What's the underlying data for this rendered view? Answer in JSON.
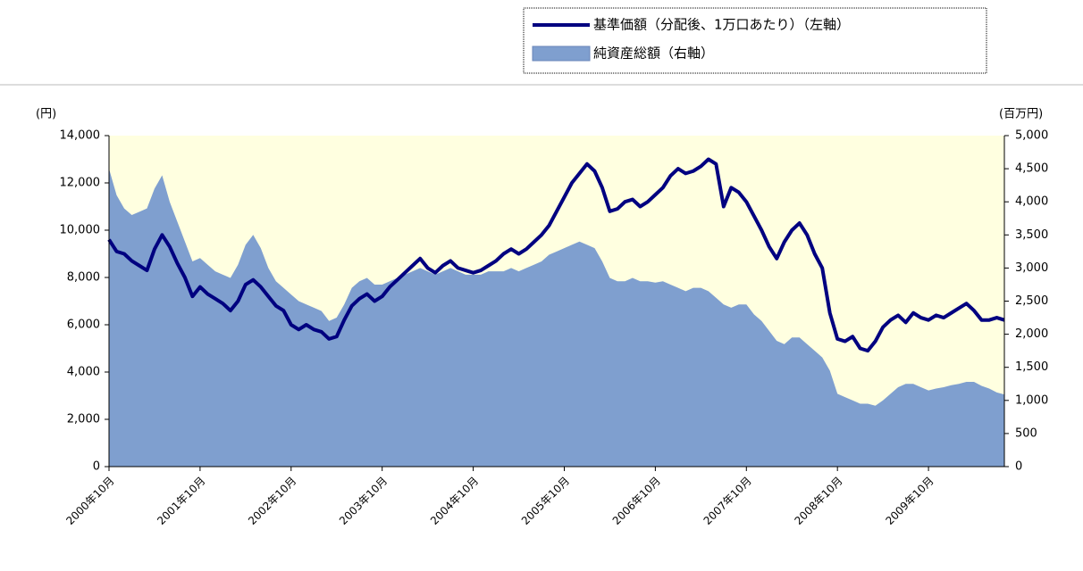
{
  "chart_data": {
    "type": "combo",
    "y_label": "(円)",
    "y2_label": "(百万円)",
    "categories": [
      "2000年10月",
      null,
      null,
      null,
      null,
      null,
      null,
      null,
      null,
      null,
      null,
      null,
      "2001年10月",
      null,
      null,
      null,
      null,
      null,
      null,
      null,
      null,
      null,
      null,
      null,
      "2002年10月",
      null,
      null,
      null,
      null,
      null,
      null,
      null,
      null,
      null,
      null,
      null,
      "2003年10月",
      null,
      null,
      null,
      null,
      null,
      null,
      null,
      null,
      null,
      null,
      null,
      "2004年10月",
      null,
      null,
      null,
      null,
      null,
      null,
      null,
      null,
      null,
      null,
      null,
      "2005年10月",
      null,
      null,
      null,
      null,
      null,
      null,
      null,
      null,
      null,
      null,
      null,
      "2006年10月",
      null,
      null,
      null,
      null,
      null,
      null,
      null,
      null,
      null,
      null,
      null,
      "2007年10月",
      null,
      null,
      null,
      null,
      null,
      null,
      null,
      null,
      null,
      null,
      null,
      "2008年10月",
      null,
      null,
      null,
      null,
      null,
      null,
      null,
      null,
      null,
      null,
      null,
      "2009年10月",
      null,
      null,
      null,
      null,
      null,
      null,
      null,
      null,
      null,
      null
    ],
    "series": [
      {
        "name": "基準価額（分配後、1万口あたり）（左軸）",
        "type": "line",
        "color": "#000080",
        "values": [
          9600,
          9100,
          9000,
          8700,
          8500,
          8300,
          9200,
          9800,
          9300,
          8600,
          8000,
          7200,
          7600,
          7300,
          7100,
          6900,
          6600,
          7000,
          7700,
          7900,
          7600,
          7200,
          6800,
          6600,
          6000,
          5800,
          6000,
          5800,
          5700,
          5400,
          5500,
          6200,
          6800,
          7100,
          7300,
          7000,
          7200,
          7600,
          7900,
          8200,
          8500,
          8800,
          8400,
          8200,
          8500,
          8700,
          8400,
          8300,
          8200,
          8300,
          8500,
          8700,
          9000,
          9200,
          9000,
          9200,
          9500,
          9800,
          10200,
          10800,
          11400,
          12000,
          12400,
          12800,
          12500,
          11800,
          10800,
          10900,
          11200,
          11300,
          11000,
          11200,
          11500,
          11800,
          12300,
          12600,
          12400,
          12500,
          12700,
          13000,
          12800,
          11000,
          11800,
          11600,
          11200,
          10600,
          10000,
          9300,
          8800,
          9500,
          10000,
          10300,
          9800,
          9000,
          8400,
          6500,
          5400,
          5300,
          5500,
          5000,
          4900,
          5300,
          5900,
          6200,
          6400,
          6100,
          6500,
          6300,
          6200,
          6400,
          6300,
          6500,
          6700,
          6900,
          6600,
          6200,
          6200,
          6300,
          6200
        ]
      },
      {
        "name": "純資産総額（右軸）",
        "type": "area",
        "axis": "y2",
        "color": "#7f9fcf",
        "values": [
          4500,
          4100,
          3900,
          3800,
          3850,
          3900,
          4200,
          4400,
          4000,
          3700,
          3400,
          3100,
          3150,
          3050,
          2950,
          2900,
          2850,
          3050,
          3350,
          3500,
          3300,
          3000,
          2800,
          2700,
          2600,
          2500,
          2450,
          2400,
          2350,
          2200,
          2250,
          2450,
          2700,
          2800,
          2850,
          2750,
          2750,
          2800,
          2850,
          2900,
          2950,
          3000,
          2950,
          2900,
          2950,
          3000,
          2950,
          2900,
          2900,
          2900,
          2950,
          2950,
          2950,
          3000,
          2950,
          3000,
          3050,
          3100,
          3200,
          3250,
          3300,
          3350,
          3400,
          3350,
          3300,
          3100,
          2850,
          2800,
          2800,
          2850,
          2800,
          2800,
          2780,
          2800,
          2750,
          2700,
          2650,
          2700,
          2700,
          2650,
          2550,
          2450,
          2400,
          2450,
          2450,
          2300,
          2200,
          2050,
          1900,
          1850,
          1950,
          1950,
          1850,
          1750,
          1650,
          1450,
          1100,
          1050,
          1000,
          950,
          950,
          920,
          1000,
          1100,
          1200,
          1250,
          1250,
          1200,
          1150,
          1180,
          1200,
          1230,
          1250,
          1280,
          1280,
          1220,
          1180,
          1120,
          1090
        ]
      }
    ],
    "ylim": [
      0,
      14000
    ],
    "yticks": [
      0,
      {
        "value": 2000,
        "label": "2,000"
      },
      {
        "value": 4000,
        "label": "4,000"
      },
      {
        "value": 6000,
        "label": "6,000"
      },
      {
        "value": 8000,
        "label": "8,000"
      },
      {
        "value": 10000,
        "label": "10,000"
      },
      {
        "value": 12000,
        "label": "12,000"
      },
      {
        "value": 14000,
        "label": "14,000"
      }
    ],
    "y2lim": [
      0,
      5000
    ],
    "y2ticks": [
      0,
      500,
      {
        "value": 1000,
        "label": "1,000"
      },
      {
        "value": 1500,
        "label": "1,500"
      },
      {
        "value": 2000,
        "label": "2,000"
      },
      {
        "value": 2500,
        "label": "2,500"
      },
      {
        "value": 3000,
        "label": "3,000"
      },
      {
        "value": 3500,
        "label": "3,500"
      },
      {
        "value": 4000,
        "label": "4,000"
      },
      {
        "value": 4500,
        "label": "4,500"
      },
      {
        "value": 5000,
        "label": "5,000"
      }
    ],
    "plot_background": "#ffffe0",
    "grid": false
  }
}
